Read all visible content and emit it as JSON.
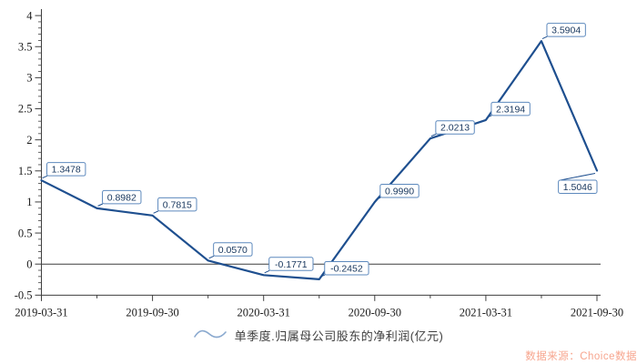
{
  "chart_data": {
    "type": "line",
    "title": "",
    "xlabel": "",
    "ylabel": "",
    "x": [
      "2019-03-31",
      "2019-06-30",
      "2019-09-30",
      "2019-12-31",
      "2020-03-31",
      "2020-06-30",
      "2020-09-30",
      "2020-12-31",
      "2021-03-31",
      "2021-06-30",
      "2021-09-30"
    ],
    "x_tick_labels": [
      "2019-03-31",
      "2019-09-30",
      "2020-03-31",
      "2020-09-30",
      "2021-03-31",
      "2021-09-30"
    ],
    "series": [
      {
        "name": "单季度.归属母公司股东的净利润(亿元)",
        "values": [
          1.3478,
          0.8982,
          0.7815,
          0.057,
          -0.1771,
          -0.2452,
          0.999,
          2.0213,
          2.3194,
          3.5904,
          1.5046
        ]
      }
    ],
    "point_labels": [
      "1.3478",
      "0.8982",
      "0.7815",
      "0.0570",
      "-0.1771",
      "-0.2452",
      "0.9990",
      "2.0213",
      "2.3194",
      "3.5904",
      "1.5046"
    ],
    "ylim": [
      -0.5,
      4
    ],
    "y_tick_values": [
      4,
      3.5,
      3,
      2.5,
      2,
      1.5,
      1,
      0.5,
      0,
      -0.5
    ],
    "y_tick_labels": [
      "4",
      "3.5",
      "3",
      "2.5",
      "2",
      "1.5",
      "1",
      "0.5",
      "0",
      "-0.5"
    ],
    "y_minor_step": 0.1,
    "grid": false,
    "zero_line": true,
    "legend_position": "bottom"
  },
  "legend": {
    "label": "单季度.归属母公司股东的净利润(亿元)"
  },
  "watermark": {
    "text": "数据来源：Choice数据"
  },
  "colors": {
    "line": "#1e4f8f",
    "label_border": "#5d89bd",
    "label_bg": "#ffffff",
    "label_text": "#17365d",
    "axis": "#3f3f3f",
    "zero_line": "#3f3f3f",
    "tick_text": "#1a1a1a",
    "legend_text": "#3d3d3d",
    "legend_icon": "#8aa9cf",
    "watermark": "#f7a58e"
  }
}
